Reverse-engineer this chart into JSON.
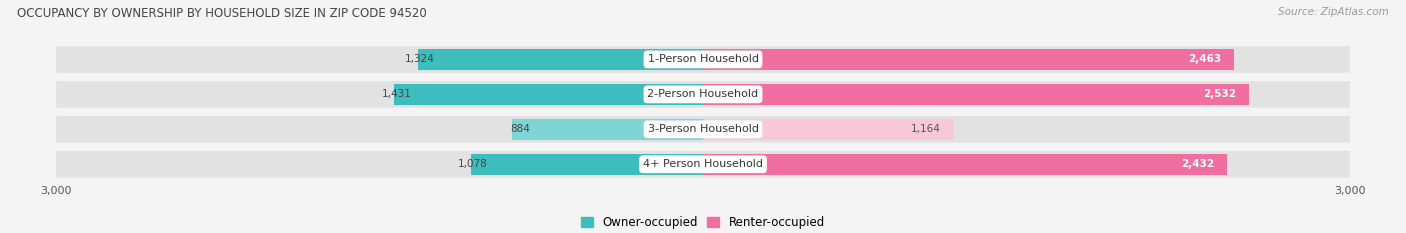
{
  "title": "OCCUPANCY BY OWNERSHIP BY HOUSEHOLD SIZE IN ZIP CODE 94520",
  "source": "Source: ZipAtlas.com",
  "categories": [
    "1-Person Household",
    "2-Person Household",
    "3-Person Household",
    "4+ Person Household"
  ],
  "owner_values": [
    1324,
    1431,
    884,
    1078
  ],
  "renter_values": [
    2463,
    2532,
    1164,
    2432
  ],
  "owner_color": "#3dbdbd",
  "owner_color_light": "#7fd4d4",
  "renter_color": "#f06fa0",
  "renter_color_light": "#f8c8d8",
  "axis_max": 3000,
  "bg_color": "#f4f4f4",
  "bar_track_color": "#e2e2e2",
  "label_color": "#555555",
  "title_color": "#444444",
  "legend_owner": "Owner-occupied",
  "legend_renter": "Renter-occupied",
  "figsize": [
    14.06,
    2.33
  ],
  "dpi": 100
}
